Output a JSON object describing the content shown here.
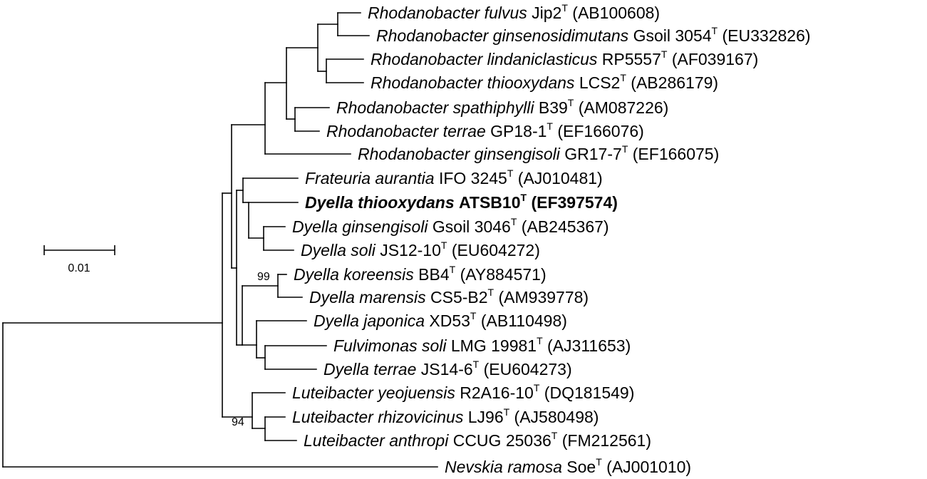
{
  "taxa": [
    {
      "genus_species": "Rhodanobacter fulvus",
      "strain": "Jip2",
      "type_mark": "T",
      "accession": "(AB100608)",
      "bold": false
    },
    {
      "genus_species": "Rhodanobacter ginsenosidimutans",
      "strain": "Gsoil 3054",
      "type_mark": "T",
      "accession": "(EU332826)",
      "bold": false
    },
    {
      "genus_species": "Rhodanobacter lindaniclasticus",
      "strain": "RP5557",
      "type_mark": "T",
      "accession": "(AF039167)",
      "bold": false
    },
    {
      "genus_species": "Rhodanobacter thiooxydans",
      "strain": "LCS2",
      "type_mark": "T",
      "accession": "(AB286179)",
      "bold": false
    },
    {
      "genus_species": "Rhodanobacter spathiphylli",
      "strain": "B39",
      "type_mark": "T",
      "accession": "(AM087226)",
      "bold": false
    },
    {
      "genus_species": "Rhodanobacter terrae",
      "strain": "GP18-1",
      "type_mark": "T",
      "accession": "(EF166076)",
      "bold": false
    },
    {
      "genus_species": "Rhodanobacter ginsengisoli",
      "strain": "GR17-7",
      "type_mark": "T",
      "accession": "(EF166075)",
      "bold": false
    },
    {
      "genus_species": "Frateuria aurantia",
      "strain": "IFO 3245",
      "type_mark": "T",
      "accession": "(AJ010481)",
      "bold": false
    },
    {
      "genus_species": "Dyella thiooxydans",
      "strain": "ATSB10",
      "type_mark": "T",
      "accession": "(EF397574)",
      "bold": true
    },
    {
      "genus_species": "Dyella ginsengisoli",
      "strain": "Gsoil 3046",
      "type_mark": "T",
      "accession": "(AB245367)",
      "bold": false
    },
    {
      "genus_species": "Dyella soli",
      "strain": "JS12-10",
      "type_mark": "T",
      "accession": "(EU604272)",
      "bold": false
    },
    {
      "genus_species": "Dyella koreensis",
      "strain": "BB4",
      "type_mark": "T",
      "accession": "(AY884571)",
      "bold": false
    },
    {
      "genus_species": "Dyella marensis",
      "strain": "CS5-B2",
      "type_mark": "T",
      "accession": "(AM939778)",
      "bold": false
    },
    {
      "genus_species": "Dyella japonica",
      "strain": "XD53",
      "type_mark": "T",
      "accession": "(AB110498)",
      "bold": false
    },
    {
      "genus_species": "Fulvimonas soli",
      "strain": "LMG 19981",
      "type_mark": "T",
      "accession": "(AJ311653)",
      "bold": false
    },
    {
      "genus_species": "Dyella terrae",
      "strain": "JS14-6",
      "type_mark": "T",
      "accession": "(EU604273)",
      "bold": false
    },
    {
      "genus_species": "Luteibacter yeojuensis",
      "strain": "R2A16-10",
      "type_mark": "T",
      "accession": "(DQ181549)",
      "bold": false
    },
    {
      "genus_species": "Luteibacter rhizovicinus",
      "strain": "LJ96",
      "type_mark": "T",
      "accession": "(AJ580498)",
      "bold": false
    },
    {
      "genus_species": "Luteibacter anthropi",
      "strain": "CCUG 25036",
      "type_mark": "T",
      "accession": "(FM212561)",
      "bold": false
    },
    {
      "genus_species": "Nevskia ramosa",
      "strain": "Soe",
      "type_mark": "T",
      "accession": "(AJ001010)",
      "bold": false
    }
  ],
  "bootstrap_values": [
    "99",
    "94"
  ],
  "scale_bar": {
    "label": "0.01"
  }
}
